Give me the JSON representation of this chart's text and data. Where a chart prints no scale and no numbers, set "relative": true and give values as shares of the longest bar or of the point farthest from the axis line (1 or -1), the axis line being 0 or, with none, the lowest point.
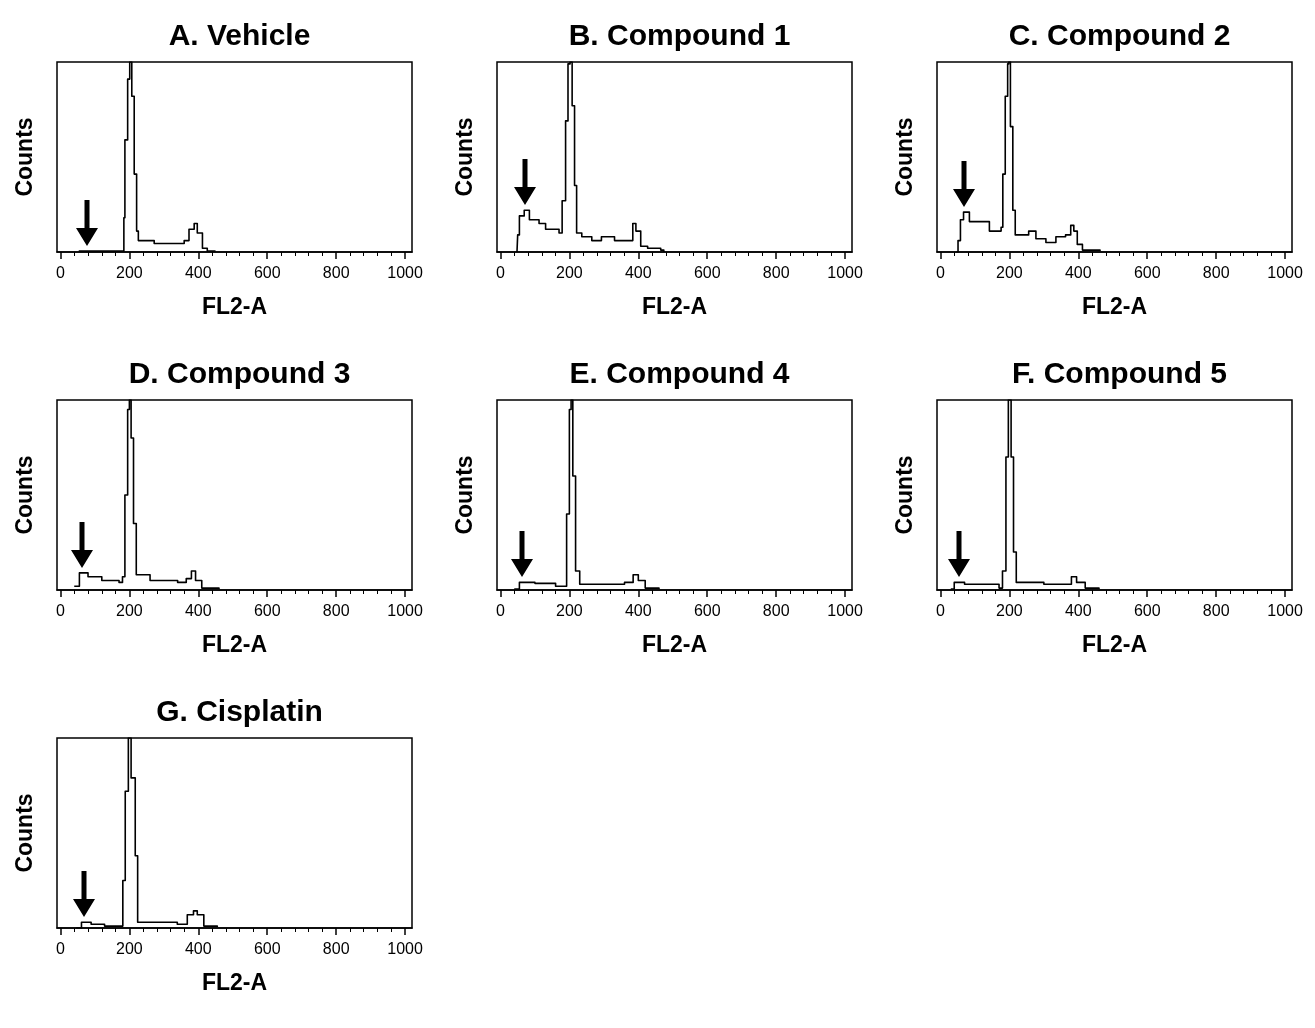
{
  "chart_data": [
    {
      "type": "step",
      "title": "A. Vehicle",
      "xlabel": "FL2-A",
      "ylabel": "Counts",
      "relative": true,
      "xlim": [
        -10,
        1020
      ],
      "xticks": [
        0,
        200,
        400,
        600,
        800,
        1000
      ],
      "grid": false,
      "marker": "none",
      "series": [
        {
          "color": "#000000",
          "x": [
            53,
            120,
            176,
            184,
            187,
            195,
            201,
            207,
            214,
            221,
            226,
            243,
            272,
            311,
            359,
            373,
            388,
            397,
            412,
            426,
            450
          ],
          "values": [
            0.005,
            0.005,
            0.005,
            0.18,
            0.59,
            0.91,
            1,
            0.82,
            0.41,
            0.11,
            0.06,
            0.06,
            0.045,
            0.045,
            0.06,
            0.12,
            0.15,
            0.1,
            0.02,
            0.005,
            0.005
          ]
        }
      ]
    },
    {
      "type": "step",
      "title": "B. Compound 1",
      "xlabel": "FL2-A",
      "ylabel": "Counts",
      "relative": true,
      "xlim": [
        -10,
        1020
      ],
      "xticks": [
        0,
        200,
        400,
        600,
        800,
        1000
      ],
      "grid": false,
      "marker": "none",
      "series": [
        {
          "color": "#000000",
          "x": [
            48,
            50,
            55,
            69,
            84,
            112,
            131,
            170,
            179,
            189,
            196,
            202,
            208,
            215,
            221,
            236,
            265,
            293,
            331,
            369,
            384,
            393,
            407,
            427,
            465,
            474
          ],
          "values": [
            0,
            0.09,
            0.19,
            0.22,
            0.17,
            0.15,
            0.12,
            0.1,
            0.27,
            0.69,
            0.99,
            1,
            0.77,
            0.35,
            0.1,
            0.08,
            0.06,
            0.08,
            0.06,
            0.06,
            0.15,
            0.11,
            0.03,
            0.02,
            0.01,
            0
          ]
        }
      ]
    },
    {
      "type": "step",
      "title": "C. Compound 2",
      "xlabel": "FL2-A",
      "ylabel": "Counts",
      "relative": true,
      "xlim": [
        -10,
        1020
      ],
      "xticks": [
        0,
        200,
        400,
        600,
        800,
        1000
      ],
      "grid": false,
      "marker": "none",
      "series": [
        {
          "color": "#000000",
          "x": [
            46,
            51,
            58,
            67,
            84,
            118,
            142,
            176,
            181,
            188,
            195,
            198,
            203,
            210,
            217,
            238,
            256,
            277,
            306,
            335,
            363,
            378,
            387,
            397,
            412,
            463
          ],
          "values": [
            0,
            0.06,
            0.17,
            0.21,
            0.16,
            0.16,
            0.11,
            0.13,
            0.41,
            0.82,
            0.99,
            1,
            0.66,
            0.22,
            0.09,
            0.09,
            0.11,
            0.07,
            0.05,
            0.08,
            0.09,
            0.14,
            0.11,
            0.04,
            0.01,
            0.005
          ]
        }
      ]
    },
    {
      "type": "step",
      "title": "D. Compound 3",
      "xlabel": "FL2-A",
      "ylabel": "Counts",
      "relative": true,
      "xlim": [
        -10,
        1020
      ],
      "xticks": [
        0,
        200,
        400,
        600,
        800,
        1000
      ],
      "grid": false,
      "marker": "none",
      "series": [
        {
          "color": "#000000",
          "x": [
            40,
            55,
            80,
            120,
            170,
            180,
            187,
            195,
            200,
            205,
            212,
            220,
            260,
            340,
            365,
            380,
            392,
            410,
            460
          ],
          "values": [
            0.02,
            0.09,
            0.07,
            0.05,
            0.04,
            0.07,
            0.5,
            0.95,
            1,
            0.8,
            0.35,
            0.08,
            0.05,
            0.04,
            0.06,
            0.1,
            0.05,
            0.01,
            0.005
          ]
        }
      ]
    },
    {
      "type": "step",
      "title": "E. Compound 4",
      "xlabel": "FL2-A",
      "ylabel": "Counts",
      "relative": true,
      "xlim": [
        -10,
        1020
      ],
      "xticks": [
        0,
        200,
        400,
        600,
        800,
        1000
      ],
      "grid": false,
      "marker": "none",
      "series": [
        {
          "color": "#000000",
          "x": [
            40,
            55,
            100,
            160,
            185,
            192,
            200,
            205,
            210,
            218,
            230,
            300,
            360,
            385,
            400,
            420,
            460
          ],
          "values": [
            0.005,
            0.04,
            0.035,
            0.02,
            0.02,
            0.4,
            0.95,
            1,
            0.6,
            0.1,
            0.03,
            0.03,
            0.04,
            0.08,
            0.05,
            0.01,
            0.005
          ]
        }
      ]
    },
    {
      "type": "step",
      "title": "F. Compound 5",
      "xlabel": "FL2-A",
      "ylabel": "Counts",
      "relative": true,
      "xlim": [
        -10,
        1020
      ],
      "xticks": [
        0,
        200,
        400,
        600,
        800,
        1000
      ],
      "grid": false,
      "marker": "none",
      "series": [
        {
          "color": "#000000",
          "x": [
            30,
            40,
            70,
            120,
            170,
            180,
            190,
            197,
            205,
            212,
            220,
            300,
            360,
            380,
            395,
            420,
            460
          ],
          "values": [
            0.005,
            0.04,
            0.03,
            0.03,
            0.01,
            0.1,
            0.7,
            1,
            0.7,
            0.2,
            0.04,
            0.03,
            0.03,
            0.07,
            0.04,
            0.01,
            0.005
          ]
        }
      ]
    },
    {
      "type": "step",
      "title": "G. Cisplatin",
      "xlabel": "FL2-A",
      "ylabel": "Counts",
      "relative": true,
      "xlim": [
        -10,
        1020
      ],
      "xticks": [
        0,
        200,
        400,
        600,
        800,
        1000
      ],
      "grid": false,
      "marker": "none",
      "series": [
        {
          "color": "#000000",
          "x": [
            46,
            61,
            89,
            128,
            171,
            181,
            188,
            197,
            205,
            217,
            224,
            253,
            291,
            339,
            368,
            386,
            397,
            416,
            455
          ],
          "values": [
            0,
            0.03,
            0.02,
            0.01,
            0.01,
            0.25,
            0.72,
            1,
            0.79,
            0.38,
            0.03,
            0.03,
            0.03,
            0.02,
            0.07,
            0.09,
            0.07,
            0.01,
            0.005
          ]
        }
      ]
    }
  ]
}
